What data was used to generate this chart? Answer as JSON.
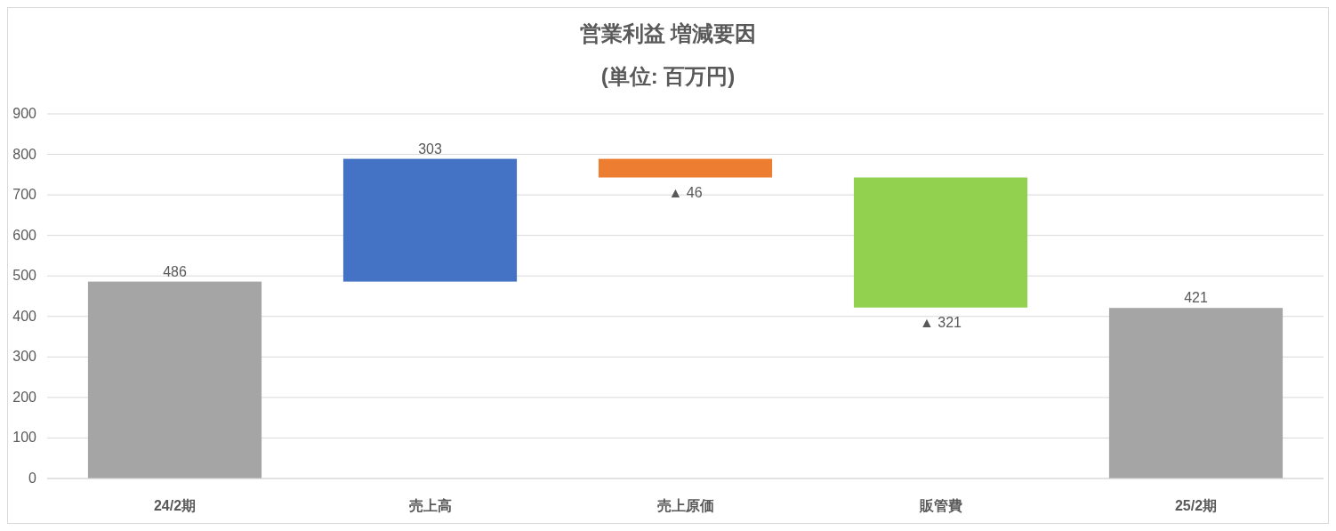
{
  "chart_data": {
    "type": "bar",
    "title": "営業利益 増減要因",
    "subtitle": "(単位: 百万円)",
    "categories": [
      "24/2期",
      "売上高",
      "売上原価",
      "販管費",
      "25/2期"
    ],
    "values": [
      486,
      303,
      -46,
      -321,
      421
    ],
    "base": [
      0,
      486,
      789,
      743,
      0
    ],
    "colors": [
      "#a5a5a5",
      "#4472c4",
      "#ed7d31",
      "#92d050",
      "#a5a5a5"
    ],
    "value_labels": [
      "486",
      "303",
      "▲ 46",
      "▲ 321",
      "421"
    ],
    "ylim": [
      0,
      900
    ],
    "yticks": [
      0,
      100,
      200,
      300,
      400,
      500,
      600,
      700,
      800,
      900
    ],
    "grid": "y"
  }
}
